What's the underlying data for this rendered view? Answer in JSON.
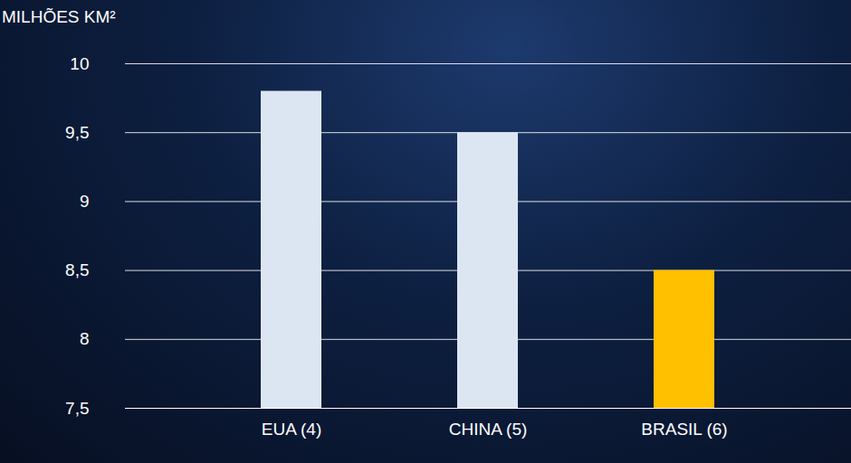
{
  "chart_data": {
    "type": "bar",
    "y_label": "MILHÕES KM²",
    "categories": [
      "EUA (4)",
      "CHINA (5)",
      "BRASIL (6)"
    ],
    "values": [
      9.8,
      9.5,
      8.5
    ],
    "colors": [
      "#dce6f2",
      "#dce6f2",
      "#ffc000"
    ],
    "ylim": [
      7.5,
      10
    ],
    "yticks": [
      {
        "value": 7.5,
        "label": "7,5"
      },
      8,
      {
        "value": 8.5,
        "label": "8,5"
      },
      9,
      {
        "value": 9.5,
        "label": "9,5"
      },
      10
    ],
    "grid": true
  }
}
